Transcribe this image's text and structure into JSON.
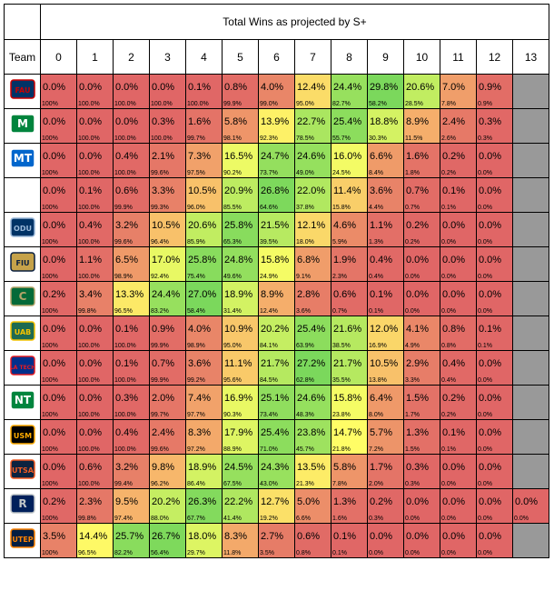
{
  "title": "Total Wins as projected by S+",
  "team_header": "Team",
  "win_columns": [
    "0",
    "1",
    "2",
    "3",
    "4",
    "5",
    "6",
    "7",
    "8",
    "9",
    "10",
    "11",
    "12",
    "13"
  ],
  "colors": {
    "scale": [
      "#e06666",
      "#e87a5c",
      "#f0974d",
      "#f6b044",
      "#f5cd3a",
      "#e8e33b",
      "#ccea4a",
      "#a6e45c",
      "#8ade63"
    ],
    "na_gray": "#999999",
    "low_red": "#e67c73"
  },
  "teams": [
    {
      "logo": "fau-owls-logo",
      "logo_text": "FAU",
      "colors": [
        "#003366",
        "#cc0000"
      ],
      "pct": [
        "0.0%",
        "0.0%",
        "0.0%",
        "0.0%",
        "0.1%",
        "0.8%",
        "4.0%",
        "12.4%",
        "24.4%",
        "29.8%",
        "20.6%",
        "7.0%",
        "0.9%"
      ],
      "cum": [
        "100%",
        "100.0%",
        "100.0%",
        "100.0%",
        "100.0%",
        "99.9%",
        "99.0%",
        "95.0%",
        "82.7%",
        "58.2%",
        "28.5%",
        "7.8%",
        "0.9%"
      ],
      "vals": [
        0,
        0,
        0,
        0,
        0.1,
        0.8,
        4.0,
        12.4,
        24.4,
        29.8,
        20.6,
        7.0,
        0.9
      ]
    },
    {
      "logo": "marshall-thundering-herd-logo",
      "logo_text": "M",
      "colors": [
        "#00843d",
        "#ffffff"
      ],
      "pct": [
        "0.0%",
        "0.0%",
        "0.0%",
        "0.3%",
        "1.6%",
        "5.8%",
        "13.9%",
        "22.7%",
        "25.4%",
        "18.8%",
        "8.9%",
        "2.4%",
        "0.3%"
      ],
      "cum": [
        "100%",
        "100.0%",
        "100.0%",
        "100.0%",
        "99.7%",
        "98.1%",
        "92.3%",
        "78.5%",
        "55.7%",
        "30.3%",
        "11.5%",
        "2.6%",
        "0.3%"
      ],
      "vals": [
        0,
        0,
        0,
        0.3,
        1.6,
        5.8,
        13.9,
        22.7,
        25.4,
        18.8,
        8.9,
        2.4,
        0.3
      ]
    },
    {
      "logo": "middle-tennessee-logo",
      "logo_text": "MT",
      "colors": [
        "#0066cc",
        "#ffffff"
      ],
      "pct": [
        "0.0%",
        "0.0%",
        "0.4%",
        "2.1%",
        "7.3%",
        "16.5%",
        "24.7%",
        "24.6%",
        "16.0%",
        "6.6%",
        "1.6%",
        "0.2%",
        "0.0%"
      ],
      "cum": [
        "100%",
        "100.0%",
        "100.0%",
        "99.6%",
        "97.5%",
        "90.2%",
        "73.7%",
        "49.0%",
        "24.5%",
        "8.4%",
        "1.8%",
        "0.2%",
        "0.0%"
      ],
      "vals": [
        0,
        0,
        0.4,
        2.1,
        7.3,
        16.5,
        24.7,
        24.6,
        16.0,
        6.6,
        1.6,
        0.2,
        0
      ]
    },
    {
      "logo": "blank-logo",
      "logo_text": "",
      "colors": [
        "#ffffff",
        "#ffffff"
      ],
      "pct": [
        "0.0%",
        "0.1%",
        "0.6%",
        "3.3%",
        "10.5%",
        "20.9%",
        "26.8%",
        "22.0%",
        "11.4%",
        "3.6%",
        "0.7%",
        "0.1%",
        "0.0%"
      ],
      "cum": [
        "100%",
        "100.0%",
        "99.9%",
        "99.3%",
        "96.0%",
        "85.5%",
        "64.6%",
        "37.8%",
        "15.8%",
        "4.4%",
        "0.7%",
        "0.1%",
        "0.0%"
      ],
      "vals": [
        0,
        0.1,
        0.6,
        3.3,
        10.5,
        20.9,
        26.8,
        22.0,
        11.4,
        3.6,
        0.7,
        0.1,
        0
      ]
    },
    {
      "logo": "old-dominion-monarchs-logo",
      "logo_text": "ODU",
      "colors": [
        "#003366",
        "#9ab8d9"
      ],
      "pct": [
        "0.0%",
        "0.4%",
        "3.2%",
        "10.5%",
        "20.6%",
        "25.8%",
        "21.5%",
        "12.1%",
        "4.6%",
        "1.1%",
        "0.2%",
        "0.0%",
        "0.0%"
      ],
      "cum": [
        "100%",
        "100.0%",
        "99.6%",
        "96.4%",
        "85.9%",
        "65.3%",
        "39.5%",
        "18.0%",
        "5.9%",
        "1.3%",
        "0.2%",
        "0.0%",
        "0.0%"
      ],
      "vals": [
        0,
        0.4,
        3.2,
        10.5,
        20.6,
        25.8,
        21.5,
        12.1,
        4.6,
        1.1,
        0.2,
        0,
        0
      ]
    },
    {
      "logo": "fiu-panthers-logo",
      "logo_text": "FIU",
      "colors": [
        "#c5a24a",
        "#081e3f"
      ],
      "pct": [
        "0.0%",
        "1.1%",
        "6.5%",
        "17.0%",
        "25.8%",
        "24.8%",
        "15.8%",
        "6.8%",
        "1.9%",
        "0.4%",
        "0.0%",
        "0.0%",
        "0.0%"
      ],
      "cum": [
        "100%",
        "100.0%",
        "98.9%",
        "92.4%",
        "75.4%",
        "49.6%",
        "24.9%",
        "9.1%",
        "2.3%",
        "0.4%",
        "0.0%",
        "0.0%",
        "0.0%"
      ],
      "vals": [
        0,
        1.1,
        6.5,
        17.0,
        25.8,
        24.8,
        15.8,
        6.8,
        1.9,
        0.4,
        0,
        0,
        0
      ]
    },
    {
      "logo": "charlotte-49ers-logo",
      "logo_text": "C",
      "colors": [
        "#046a38",
        "#b3a369"
      ],
      "pct": [
        "0.2%",
        "3.4%",
        "13.3%",
        "24.4%",
        "27.0%",
        "18.9%",
        "8.9%",
        "2.8%",
        "0.6%",
        "0.1%",
        "0.0%",
        "0.0%",
        "0.0%"
      ],
      "cum": [
        "100%",
        "99.8%",
        "96.5%",
        "83.2%",
        "58.4%",
        "31.4%",
        "12.4%",
        "3.6%",
        "0.7%",
        "0.1%",
        "0.0%",
        "0.0%",
        "0.0%"
      ],
      "vals": [
        0.2,
        3.4,
        13.3,
        24.4,
        27.0,
        18.9,
        8.9,
        2.8,
        0.6,
        0.1,
        0,
        0,
        0
      ]
    },
    {
      "logo": "uab-blazers-logo",
      "logo_text": "UAB",
      "colors": [
        "#1e6b52",
        "#f4c300"
      ],
      "pct": [
        "0.0%",
        "0.0%",
        "0.1%",
        "0.9%",
        "4.0%",
        "10.9%",
        "20.2%",
        "25.4%",
        "21.6%",
        "12.0%",
        "4.1%",
        "0.8%",
        "0.1%"
      ],
      "cum": [
        "100%",
        "100.0%",
        "100.0%",
        "99.9%",
        "98.9%",
        "95.0%",
        "84.1%",
        "63.9%",
        "38.5%",
        "16.9%",
        "4.9%",
        "0.8%",
        "0.1%"
      ],
      "vals": [
        0,
        0,
        0.1,
        0.9,
        4.0,
        10.9,
        20.2,
        25.4,
        21.6,
        12.0,
        4.1,
        0.8,
        0.1
      ]
    },
    {
      "logo": "louisiana-tech-logo",
      "logo_text": "LA TECH",
      "colors": [
        "#002f8b",
        "#e31b23"
      ],
      "pct": [
        "0.0%",
        "0.0%",
        "0.1%",
        "0.7%",
        "3.6%",
        "11.1%",
        "21.7%",
        "27.2%",
        "21.7%",
        "10.5%",
        "2.9%",
        "0.4%",
        "0.0%"
      ],
      "cum": [
        "100%",
        "100.0%",
        "100.0%",
        "99.9%",
        "99.2%",
        "95.6%",
        "84.5%",
        "62.8%",
        "35.5%",
        "13.8%",
        "3.3%",
        "0.4%",
        "0.0%"
      ],
      "vals": [
        0,
        0,
        0.1,
        0.7,
        3.6,
        11.1,
        21.7,
        27.2,
        21.7,
        10.5,
        2.9,
        0.4,
        0
      ]
    },
    {
      "logo": "north-texas-mean-green-logo",
      "logo_text": "NT",
      "colors": [
        "#00853e",
        "#ffffff"
      ],
      "pct": [
        "0.0%",
        "0.0%",
        "0.3%",
        "2.0%",
        "7.4%",
        "16.9%",
        "25.1%",
        "24.6%",
        "15.8%",
        "6.4%",
        "1.5%",
        "0.2%",
        "0.0%"
      ],
      "cum": [
        "100%",
        "100.0%",
        "100.0%",
        "99.7%",
        "97.7%",
        "90.3%",
        "73.4%",
        "48.3%",
        "23.8%",
        "8.0%",
        "1.7%",
        "0.2%",
        "0.0%"
      ],
      "vals": [
        0,
        0,
        0.3,
        2.0,
        7.4,
        16.9,
        25.1,
        24.6,
        15.8,
        6.4,
        1.5,
        0.2,
        0
      ]
    },
    {
      "logo": "southern-miss-golden-eagles-logo",
      "logo_text": "USM",
      "colors": [
        "#000000",
        "#ffab00"
      ],
      "pct": [
        "0.0%",
        "0.0%",
        "0.4%",
        "2.4%",
        "8.3%",
        "17.9%",
        "25.4%",
        "23.8%",
        "14.7%",
        "5.7%",
        "1.3%",
        "0.1%",
        "0.0%"
      ],
      "cum": [
        "100%",
        "100.0%",
        "100.0%",
        "99.6%",
        "97.2%",
        "88.9%",
        "71.0%",
        "45.7%",
        "21.8%",
        "7.2%",
        "1.5%",
        "0.1%",
        "0.0%"
      ],
      "vals": [
        0,
        0,
        0.4,
        2.4,
        8.3,
        17.9,
        25.4,
        23.8,
        14.7,
        5.7,
        1.3,
        0.1,
        0
      ]
    },
    {
      "logo": "utsa-roadrunners-logo",
      "logo_text": "UTSA",
      "colors": [
        "#0c2340",
        "#f15a22"
      ],
      "pct": [
        "0.0%",
        "0.6%",
        "3.2%",
        "9.8%",
        "18.9%",
        "24.5%",
        "24.3%",
        "13.5%",
        "5.8%",
        "1.7%",
        "0.3%",
        "0.0%",
        "0.0%"
      ],
      "cum": [
        "100%",
        "100.0%",
        "99.4%",
        "96.2%",
        "86.4%",
        "67.5%",
        "43.0%",
        "21.3%",
        "7.8%",
        "2.0%",
        "0.3%",
        "0.0%",
        "0.0%"
      ],
      "vals": [
        0,
        0.6,
        3.2,
        9.8,
        18.9,
        24.5,
        24.3,
        13.5,
        5.8,
        1.7,
        0.3,
        0,
        0
      ]
    },
    {
      "logo": "rice-owls-logo",
      "logo_text": "R",
      "colors": [
        "#00205b",
        "#c1c6c8"
      ],
      "pct": [
        "0.2%",
        "2.3%",
        "9.5%",
        "20.2%",
        "26.3%",
        "22.2%",
        "12.7%",
        "5.0%",
        "1.3%",
        "0.2%",
        "0.0%",
        "0.0%",
        "0.0%",
        "0.0%"
      ],
      "cum": [
        "100%",
        "99.8%",
        "97.4%",
        "88.0%",
        "67.7%",
        "41.4%",
        "19.2%",
        "6.6%",
        "1.6%",
        "0.3%",
        "0.0%",
        "0.0%",
        "0.0%",
        "0.0%"
      ],
      "vals": [
        0.2,
        2.3,
        9.5,
        20.2,
        26.3,
        22.2,
        12.7,
        5.0,
        1.3,
        0.2,
        0,
        0,
        0,
        0
      ]
    },
    {
      "logo": "utep-miners-logo",
      "logo_text": "UTEP",
      "colors": [
        "#041e42",
        "#ff8200"
      ],
      "pct": [
        "3.5%",
        "14.4%",
        "25.7%",
        "26.7%",
        "18.0%",
        "8.3%",
        "2.7%",
        "0.6%",
        "0.1%",
        "0.0%",
        "0.0%",
        "0.0%",
        "0.0%"
      ],
      "cum": [
        "100%",
        "96.5%",
        "82.2%",
        "56.4%",
        "29.7%",
        "11.8%",
        "3.5%",
        "0.8%",
        "0.1%",
        "0.0%",
        "0.0%",
        "0.0%",
        "0.0%"
      ],
      "vals": [
        3.5,
        14.4,
        25.7,
        26.7,
        18.0,
        8.3,
        2.7,
        0.6,
        0.1,
        0,
        0,
        0,
        0
      ]
    }
  ]
}
